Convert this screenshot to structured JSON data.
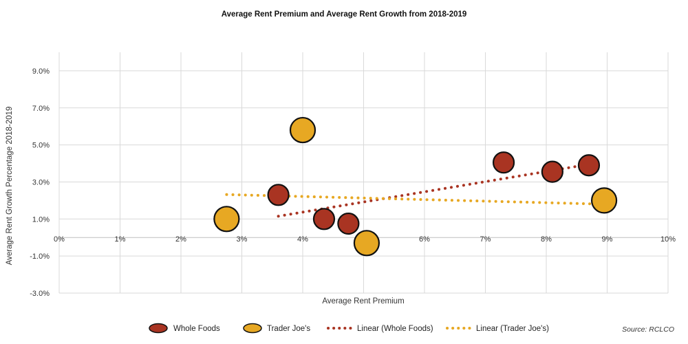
{
  "chart_data": {
    "type": "scatter",
    "title": "Average Rent Premium and Average Rent Growth from 2018-2019",
    "xlabel": "Average Rent Premium",
    "ylabel": "Average Rent Growth Percentage 2018-2019",
    "xlim": [
      0,
      10
    ],
    "ylim": [
      -3,
      10
    ],
    "x_ticks": [
      "0%",
      "1%",
      "2%",
      "3%",
      "4%",
      "5%",
      "6%",
      "7%",
      "8%",
      "9%",
      "10%"
    ],
    "y_ticks": [
      "-3.0%",
      "-1.0%",
      "1.0%",
      "3.0%",
      "5.0%",
      "7.0%",
      "9.0%"
    ],
    "grid": true,
    "legend_position": "bottom",
    "source": "Source: RCLCO",
    "series": [
      {
        "name": "Whole Foods",
        "color": "#A93422",
        "marker": "large-circle",
        "points": [
          {
            "x": 3.6,
            "y": 2.3
          },
          {
            "x": 4.35,
            "y": 1.0
          },
          {
            "x": 4.75,
            "y": 0.75
          },
          {
            "x": 7.3,
            "y": 4.05
          },
          {
            "x": 8.1,
            "y": 3.55
          },
          {
            "x": 8.7,
            "y": 3.9
          }
        ]
      },
      {
        "name": "Trader Joe's",
        "color": "#E7A823",
        "marker": "larger-circle",
        "points": [
          {
            "x": 2.75,
            "y": 1.0
          },
          {
            "x": 4.0,
            "y": 5.8
          },
          {
            "x": 5.05,
            "y": -0.3
          },
          {
            "x": 8.95,
            "y": 2.0
          }
        ]
      },
      {
        "name": "Linear (Whole Foods)",
        "color": "#A93422",
        "style": "dotted-trendline",
        "points": [
          {
            "x": 3.6,
            "y": 1.15
          },
          {
            "x": 8.7,
            "y": 3.95
          }
        ]
      },
      {
        "name": "Linear (Trader Joe's)",
        "color": "#E7A823",
        "style": "dotted-trendline",
        "points": [
          {
            "x": 2.75,
            "y": 2.32
          },
          {
            "x": 8.95,
            "y": 1.8
          }
        ]
      }
    ]
  }
}
